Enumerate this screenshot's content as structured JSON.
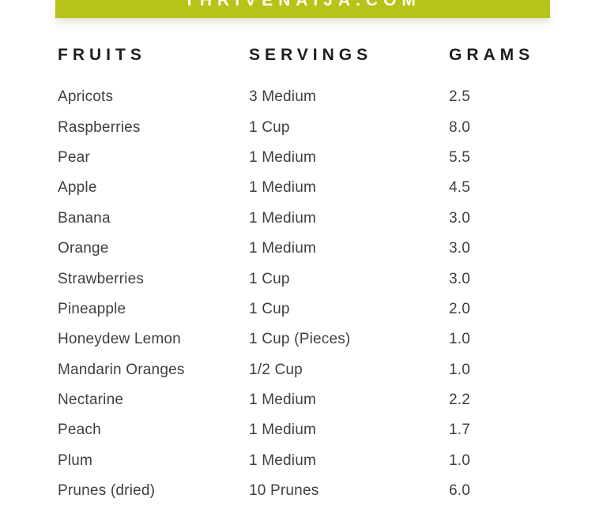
{
  "banner": {
    "text": "THRIVENAIJA.COM",
    "bg_color": "#b8c31a",
    "text_color": "#fbfcee"
  },
  "chart_data": {
    "type": "table",
    "columns": [
      "FRUITS",
      "SERVINGS",
      "GRAMS"
    ],
    "rows": [
      {
        "fruit": "Apricots",
        "serving": "3 Medium",
        "grams": "2.5"
      },
      {
        "fruit": "Raspberries",
        "serving": "1 Cup",
        "grams": "8.0"
      },
      {
        "fruit": "Pear",
        "serving": "1 Medium",
        "grams": "5.5"
      },
      {
        "fruit": "Apple",
        "serving": "1 Medium",
        "grams": "4.5"
      },
      {
        "fruit": "Banana",
        "serving": "1 Medium",
        "grams": "3.0"
      },
      {
        "fruit": "Orange",
        "serving": "1 Medium",
        "grams": "3.0"
      },
      {
        "fruit": "Strawberries",
        "serving": "1 Cup",
        "grams": "3.0"
      },
      {
        "fruit": "Pineapple",
        "serving": "1 Cup",
        "grams": "2.0"
      },
      {
        "fruit": "Honeydew Lemon",
        "serving": "1 Cup (Pieces)",
        "grams": "1.0"
      },
      {
        "fruit": "Mandarin Oranges",
        "serving": "1/2 Cup",
        "grams": "1.0"
      },
      {
        "fruit": "Nectarine",
        "serving": "1 Medium",
        "grams": "2.2"
      },
      {
        "fruit": "Peach",
        "serving": "1 Medium",
        "grams": "1.7"
      },
      {
        "fruit": "Plum",
        "serving": "1 Medium",
        "grams": "1.0"
      },
      {
        "fruit": "Prunes (dried)",
        "serving": "10 Prunes",
        "grams": "6.0"
      }
    ]
  }
}
